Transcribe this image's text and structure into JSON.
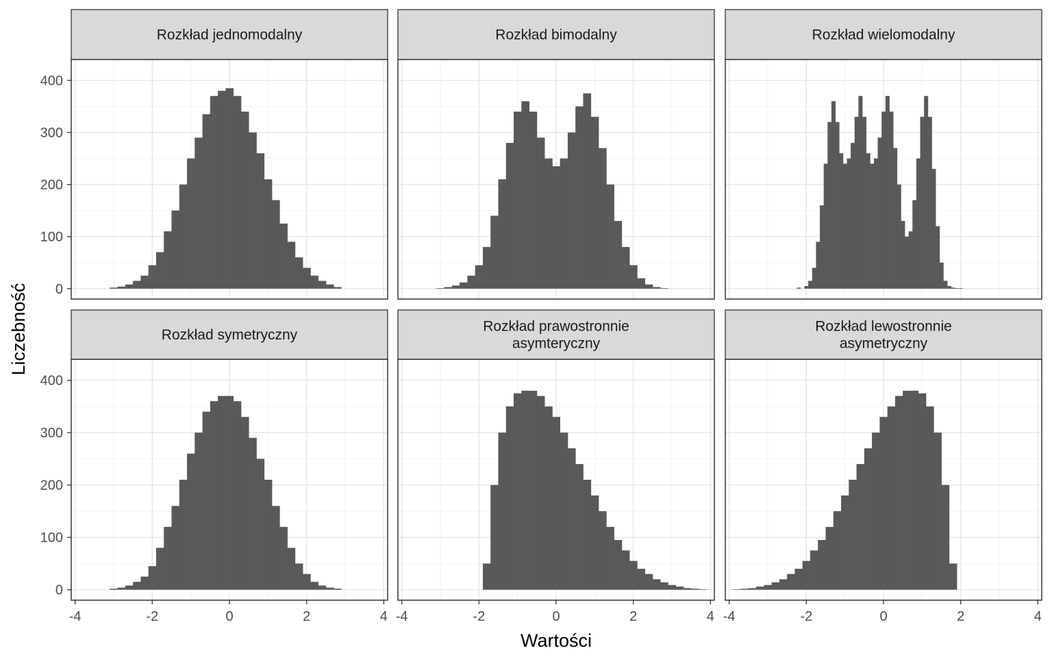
{
  "chart_data": {
    "type": "histogram",
    "layout": "facet grid 2 rows x 3 columns, shared axes",
    "xlabel": "Wartości",
    "ylabel": "Liczebność",
    "xlim": [
      -4.1,
      4.1
    ],
    "ylim": [
      -20,
      440
    ],
    "x_ticks": [
      "-4",
      "-2",
      "0",
      "2",
      "4"
    ],
    "y_ticks": [
      "0",
      "100",
      "200",
      "300",
      "400"
    ],
    "x_tick_values": [
      -4,
      -2,
      0,
      2,
      4
    ],
    "y_tick_values": [
      0,
      100,
      200,
      300,
      400
    ],
    "grid": true,
    "bar_color": "#595959",
    "strip_color": "#d9d9d9",
    "panels": [
      {
        "title": [
          "Rozkład jednomodalny"
        ],
        "x": [
          -3.0,
          -2.8,
          -2.6,
          -2.4,
          -2.2,
          -2.0,
          -1.8,
          -1.6,
          -1.4,
          -1.2,
          -1.0,
          -0.8,
          -0.6,
          -0.4,
          -0.2,
          0.0,
          0.2,
          0.4,
          0.6,
          0.8,
          1.0,
          1.2,
          1.4,
          1.6,
          1.8,
          2.0,
          2.2,
          2.4,
          2.6,
          2.8
        ],
        "counts": [
          2,
          4,
          8,
          15,
          25,
          45,
          70,
          110,
          150,
          200,
          250,
          290,
          335,
          370,
          380,
          385,
          370,
          340,
          300,
          260,
          210,
          170,
          125,
          90,
          60,
          40,
          25,
          15,
          8,
          3
        ]
      },
      {
        "title": [
          "Rozkład bimodalny"
        ],
        "x": [
          -3.0,
          -2.8,
          -2.6,
          -2.4,
          -2.2,
          -2.0,
          -1.8,
          -1.6,
          -1.4,
          -1.2,
          -1.0,
          -0.8,
          -0.6,
          -0.4,
          -0.2,
          0.0,
          0.2,
          0.4,
          0.6,
          0.8,
          1.0,
          1.2,
          1.4,
          1.6,
          1.8,
          2.0,
          2.2,
          2.4,
          2.6,
          2.8
        ],
        "counts": [
          1,
          3,
          6,
          12,
          25,
          45,
          80,
          140,
          210,
          280,
          340,
          360,
          340,
          290,
          250,
          235,
          250,
          300,
          350,
          375,
          330,
          270,
          200,
          130,
          80,
          45,
          20,
          8,
          3,
          1
        ]
      },
      {
        "title": [
          "Rozkład wielomodalny"
        ],
        "x": [
          -2.2,
          -2.0,
          -1.9,
          -1.8,
          -1.7,
          -1.6,
          -1.5,
          -1.4,
          -1.3,
          -1.2,
          -1.1,
          -1.0,
          -0.9,
          -0.8,
          -0.7,
          -0.6,
          -0.5,
          -0.4,
          -0.3,
          -0.2,
          -0.1,
          0.0,
          0.1,
          0.2,
          0.3,
          0.4,
          0.5,
          0.6,
          0.7,
          0.8,
          0.9,
          1.0,
          1.1,
          1.2,
          1.3,
          1.4,
          1.5,
          1.6,
          1.7,
          1.8,
          1.9,
          2.0,
          2.1
        ],
        "counts": [
          2,
          5,
          15,
          40,
          90,
          160,
          240,
          320,
          360,
          320,
          260,
          240,
          250,
          280,
          330,
          370,
          330,
          260,
          240,
          250,
          290,
          340,
          370,
          340,
          270,
          200,
          130,
          100,
          110,
          170,
          250,
          330,
          370,
          330,
          230,
          120,
          50,
          15,
          5,
          2,
          1,
          1,
          0
        ]
      },
      {
        "title": [
          "Rozkład symetryczny"
        ],
        "x": [
          -3.0,
          -2.8,
          -2.6,
          -2.4,
          -2.2,
          -2.0,
          -1.8,
          -1.6,
          -1.4,
          -1.2,
          -1.0,
          -0.8,
          -0.6,
          -0.4,
          -0.2,
          0.0,
          0.2,
          0.4,
          0.6,
          0.8,
          1.0,
          1.2,
          1.4,
          1.6,
          1.8,
          2.0,
          2.2,
          2.4,
          2.6,
          2.8
        ],
        "counts": [
          2,
          4,
          8,
          15,
          25,
          45,
          80,
          120,
          160,
          210,
          260,
          300,
          340,
          360,
          370,
          370,
          360,
          330,
          290,
          250,
          210,
          160,
          120,
          80,
          50,
          30,
          15,
          8,
          4,
          2
        ]
      },
      {
        "title": [
          "Rozkład prawostronnie",
          "asymteryczny"
        ],
        "x": [
          -1.8,
          -1.6,
          -1.4,
          -1.2,
          -1.0,
          -0.8,
          -0.6,
          -0.4,
          -0.2,
          0.0,
          0.2,
          0.4,
          0.6,
          0.8,
          1.0,
          1.2,
          1.4,
          1.6,
          1.8,
          2.0,
          2.2,
          2.4,
          2.6,
          2.8,
          3.0,
          3.2,
          3.4,
          3.6,
          3.8
        ],
        "counts": [
          50,
          200,
          300,
          350,
          375,
          380,
          380,
          370,
          350,
          330,
          300,
          270,
          240,
          210,
          180,
          150,
          120,
          95,
          75,
          55,
          40,
          30,
          20,
          14,
          9,
          6,
          3,
          2,
          1
        ]
      },
      {
        "title": [
          "Rozkład lewostronnie",
          "asymetryczny"
        ],
        "x": [
          -3.8,
          -3.6,
          -3.4,
          -3.2,
          -3.0,
          -2.8,
          -2.6,
          -2.4,
          -2.2,
          -2.0,
          -1.8,
          -1.6,
          -1.4,
          -1.2,
          -1.0,
          -0.8,
          -0.6,
          -0.4,
          -0.2,
          0.0,
          0.2,
          0.4,
          0.6,
          0.8,
          1.0,
          1.2,
          1.4,
          1.6,
          1.8
        ],
        "counts": [
          1,
          2,
          3,
          6,
          9,
          14,
          20,
          30,
          40,
          55,
          75,
          95,
          120,
          150,
          180,
          210,
          240,
          270,
          300,
          330,
          350,
          370,
          380,
          380,
          375,
          350,
          300,
          200,
          50
        ]
      }
    ]
  }
}
